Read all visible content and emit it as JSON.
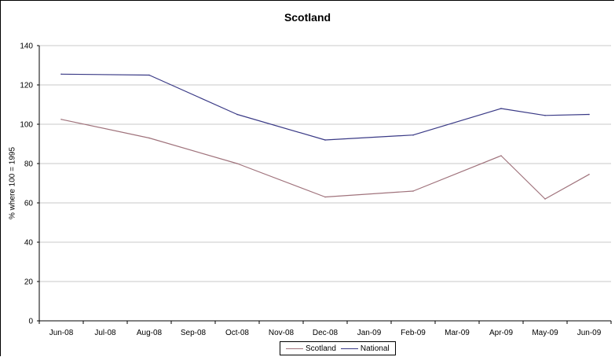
{
  "chart_data": {
    "type": "line",
    "title": "Scotland",
    "ylabel": "% where 100 = 1995",
    "xlabel": "",
    "categories": [
      "Jun-08",
      "Jul-08",
      "Aug-08",
      "Sep-08",
      "Oct-08",
      "Nov-08",
      "Dec-08",
      "Jan-09",
      "Feb-09",
      "Mar-09",
      "Apr-09",
      "May-09",
      "Jun-09"
    ],
    "ylim": [
      0,
      140
    ],
    "yticks": [
      0,
      20,
      40,
      60,
      80,
      100,
      120,
      140
    ],
    "grid": true,
    "legend_position": "bottom",
    "series": [
      {
        "name": "Scotland",
        "color": "#a0737c",
        "values": [
          102.5,
          null,
          93,
          null,
          80,
          null,
          63,
          null,
          66,
          null,
          84,
          62,
          74.5
        ]
      },
      {
        "name": "National",
        "color": "#3a3a86",
        "values": [
          125.5,
          null,
          125,
          null,
          105,
          null,
          92,
          null,
          94.5,
          null,
          108,
          104.5,
          105
        ]
      }
    ]
  }
}
